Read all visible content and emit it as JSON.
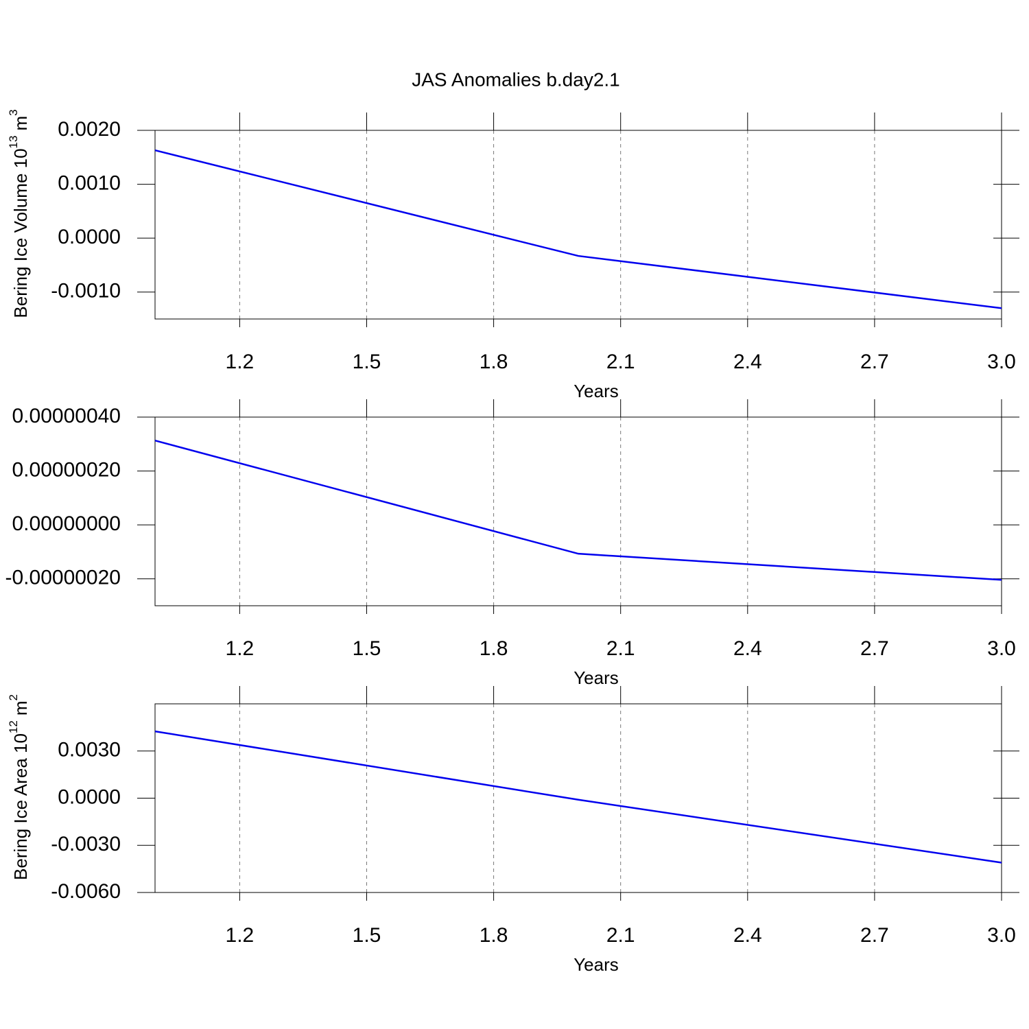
{
  "chart_data": [
    {
      "type": "line",
      "title": "JAS Anomalies b.day2.1",
      "ylabel": {
        "text": "Bering Ice Volume 10",
        "exponent": "13",
        "unit": "m",
        "unit_power": "3"
      },
      "xlabel": "Years",
      "x": [
        1,
        2,
        3
      ],
      "series": [
        {
          "values": [
            0.00163,
            -0.00033,
            -0.0013
          ],
          "color": "#0000ee"
        }
      ],
      "xlim": [
        1,
        3
      ],
      "xticks": [
        1.2,
        1.5,
        1.8,
        2.1,
        2.4,
        2.7,
        {
          "value": 3,
          "label": "3.0"
        }
      ],
      "ylim": [
        -0.0015,
        0.002
      ],
      "yticks": [
        {
          "value": 0.002,
          "label": "0.0020"
        },
        {
          "value": 0.001,
          "label": "0.0010"
        },
        {
          "value": 0,
          "label": "0.0000"
        },
        {
          "value": -0.001,
          "label": "-0.0010"
        }
      ],
      "grid": true
    },
    {
      "type": "line",
      "xlabel": "Years",
      "x": [
        1,
        2,
        3
      ],
      "series": [
        {
          "values": [
            3.13e-07,
            -1.07e-07,
            -2.04e-07
          ],
          "color": "#0000ee"
        }
      ],
      "xlim": [
        1,
        3
      ],
      "xticks": [
        1.2,
        1.5,
        1.8,
        2.1,
        2.4,
        2.7,
        {
          "value": 3,
          "label": "3.0"
        }
      ],
      "ylim": [
        -3e-07,
        4e-07
      ],
      "yticks": [
        {
          "value": 4e-07,
          "label": "0.00000040"
        },
        {
          "value": 2e-07,
          "label": "0.00000020"
        },
        {
          "value": 0,
          "label": "0.00000000"
        },
        {
          "value": -2e-07,
          "label": "-0.00000020"
        }
      ],
      "grid": true
    },
    {
      "type": "line",
      "ylabel": {
        "text": "Bering Ice Area 10",
        "exponent": "12",
        "unit": "m",
        "unit_power": "2"
      },
      "xlabel": "Years",
      "x": [
        1,
        2,
        3
      ],
      "series": [
        {
          "values": [
            0.00425,
            -0.0001,
            -0.0041
          ],
          "color": "#0000ee"
        }
      ],
      "xlim": [
        1,
        3
      ],
      "xticks": [
        1.2,
        1.5,
        1.8,
        2.1,
        2.4,
        2.7,
        {
          "value": 3,
          "label": "3.0"
        }
      ],
      "ylim": [
        -0.006,
        0.006
      ],
      "yticks": [
        {
          "value": 0.003,
          "label": "0.0030"
        },
        {
          "value": 0,
          "label": "0.0000"
        },
        {
          "value": -0.003,
          "label": "-0.0030"
        },
        {
          "value": -0.006,
          "label": "-0.0060"
        }
      ],
      "grid": true
    }
  ]
}
